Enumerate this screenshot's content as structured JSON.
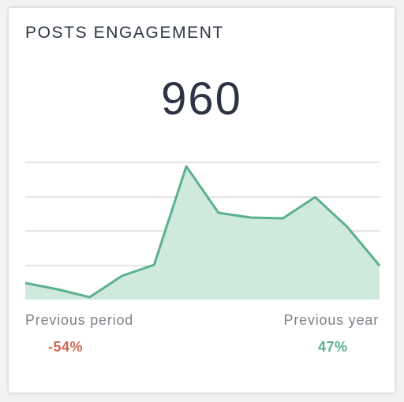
{
  "widget": {
    "title": "POSTS ENGAGEMENT",
    "metric_value": "960"
  },
  "comparisons": {
    "previous_period": {
      "label": "Previous period",
      "value": "-54%",
      "color": "#d06a55"
    },
    "previous_year": {
      "label": "Previous year",
      "value": "47%",
      "color": "#5bb08f"
    }
  },
  "colors": {
    "line": "#5bb08f",
    "area": "#cfe9dd",
    "grid": "#dcdcdc",
    "text_dark": "#2c3443",
    "text_muted": "#7d8289"
  },
  "chart_data": {
    "type": "area",
    "x": [
      0,
      1,
      2,
      3,
      4,
      5,
      6,
      7,
      8,
      9,
      10,
      11
    ],
    "values": [
      21,
      13,
      3,
      30,
      44,
      169,
      110,
      104,
      103,
      130,
      92,
      43
    ],
    "ylim": [
      0,
      180
    ],
    "grid": true,
    "gridline_values": [
      43,
      87,
      130,
      174
    ],
    "legend": "none",
    "title": "",
    "xlabel": "",
    "ylabel": ""
  }
}
